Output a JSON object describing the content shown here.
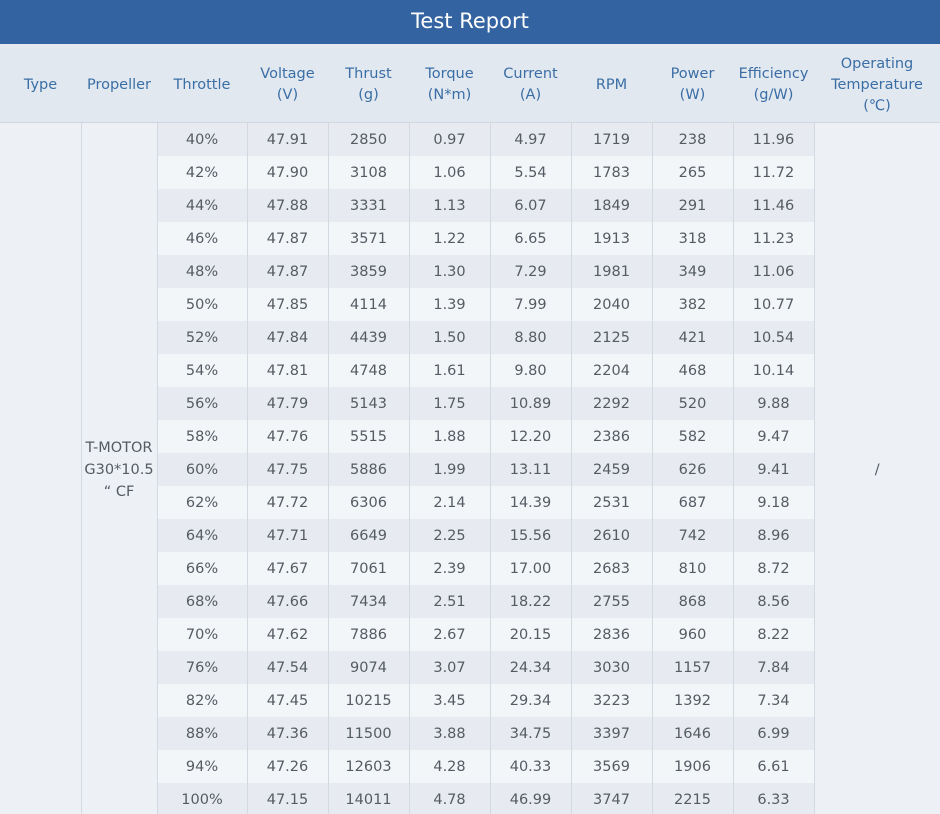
{
  "title": "Test Report",
  "headers": [
    [
      "Type"
    ],
    [
      "Propeller"
    ],
    [
      "Throttle"
    ],
    [
      "Voltage",
      "(V)"
    ],
    [
      "Thrust",
      "(g)"
    ],
    [
      "Torque",
      "(N*m)"
    ],
    [
      "Current",
      "(A)"
    ],
    [
      "RPM"
    ],
    [
      "Power",
      "(W)"
    ],
    [
      "Efficiency",
      "(g/W)"
    ],
    [
      "Operating",
      "Temperature",
      "(℃)"
    ]
  ],
  "type": "",
  "propeller": [
    "T-MOTOR",
    "G30*10.5",
    "“ CF"
  ],
  "operating_temperature": "/",
  "rows": [
    [
      "40%",
      "47.91",
      "2850",
      "0.97",
      "4.97",
      "1719",
      "238",
      "11.96"
    ],
    [
      "42%",
      "47.90",
      "3108",
      "1.06",
      "5.54",
      "1783",
      "265",
      "11.72"
    ],
    [
      "44%",
      "47.88",
      "3331",
      "1.13",
      "6.07",
      "1849",
      "291",
      "11.46"
    ],
    [
      "46%",
      "47.87",
      "3571",
      "1.22",
      "6.65",
      "1913",
      "318",
      "11.23"
    ],
    [
      "48%",
      "47.87",
      "3859",
      "1.30",
      "7.29",
      "1981",
      "349",
      "11.06"
    ],
    [
      "50%",
      "47.85",
      "4114",
      "1.39",
      "7.99",
      "2040",
      "382",
      "10.77"
    ],
    [
      "52%",
      "47.84",
      "4439",
      "1.50",
      "8.80",
      "2125",
      "421",
      "10.54"
    ],
    [
      "54%",
      "47.81",
      "4748",
      "1.61",
      "9.80",
      "2204",
      "468",
      "10.14"
    ],
    [
      "56%",
      "47.79",
      "5143",
      "1.75",
      "10.89",
      "2292",
      "520",
      "9.88"
    ],
    [
      "58%",
      "47.76",
      "5515",
      "1.88",
      "12.20",
      "2386",
      "582",
      "9.47"
    ],
    [
      "60%",
      "47.75",
      "5886",
      "1.99",
      "13.11",
      "2459",
      "626",
      "9.41"
    ],
    [
      "62%",
      "47.72",
      "6306",
      "2.14",
      "14.39",
      "2531",
      "687",
      "9.18"
    ],
    [
      "64%",
      "47.71",
      "6649",
      "2.25",
      "15.56",
      "2610",
      "742",
      "8.96"
    ],
    [
      "66%",
      "47.67",
      "7061",
      "2.39",
      "17.00",
      "2683",
      "810",
      "8.72"
    ],
    [
      "68%",
      "47.66",
      "7434",
      "2.51",
      "18.22",
      "2755",
      "868",
      "8.56"
    ],
    [
      "70%",
      "47.62",
      "7886",
      "2.67",
      "20.15",
      "2836",
      "960",
      "8.22"
    ],
    [
      "76%",
      "47.54",
      "9074",
      "3.07",
      "24.34",
      "3030",
      "1157",
      "7.84"
    ],
    [
      "82%",
      "47.45",
      "10215",
      "3.45",
      "29.34",
      "3223",
      "1392",
      "7.34"
    ],
    [
      "88%",
      "47.36",
      "11500",
      "3.88",
      "34.75",
      "3397",
      "1646",
      "6.99"
    ],
    [
      "94%",
      "47.26",
      "12603",
      "4.28",
      "40.33",
      "3569",
      "1906",
      "6.61"
    ],
    [
      "100%",
      "47.15",
      "14011",
      "4.78",
      "46.99",
      "3747",
      "2215",
      "6.33"
    ]
  ],
  "colors": {
    "title_bar": "#3363a0",
    "header_bg": "#e2e8f0",
    "header_text": "#3a6ea5",
    "row_odd": "#e7ebf1",
    "row_even": "#f3f6f9",
    "cell_text": "#555b63"
  }
}
